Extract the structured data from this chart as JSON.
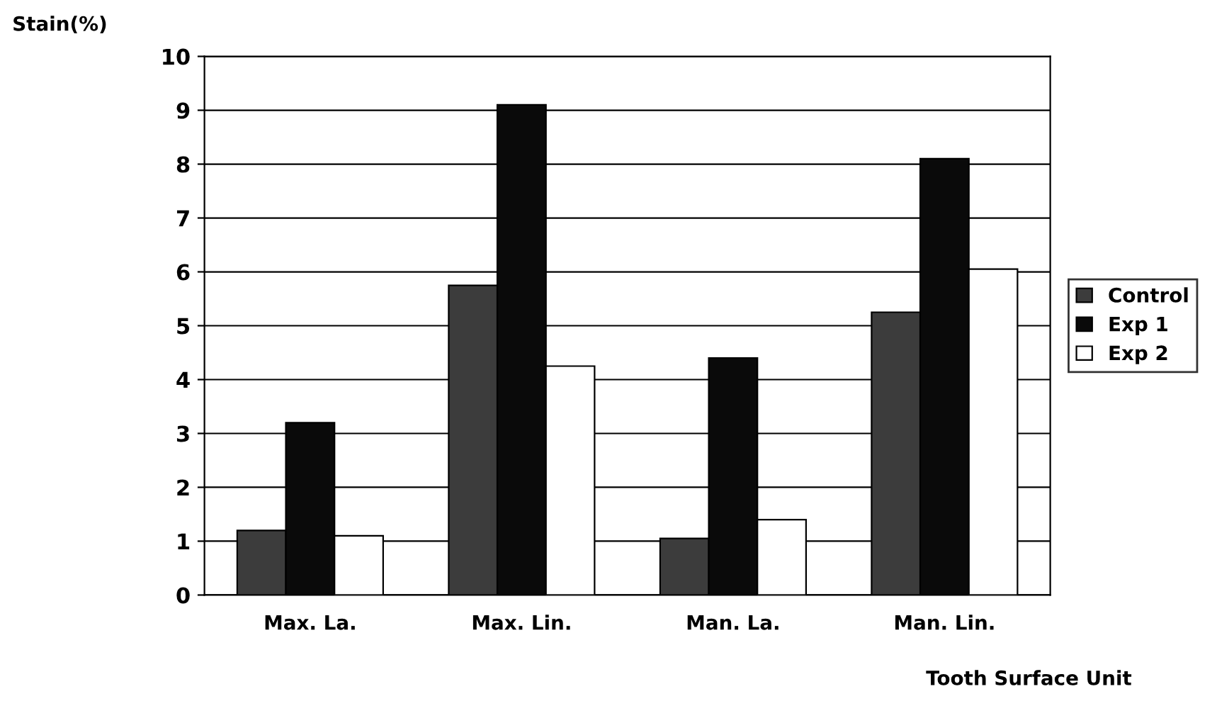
{
  "chart_data": {
    "type": "bar",
    "ylabel": "Stain(%)",
    "xlabel": "Tooth Surface Unit",
    "categories": [
      "Max. La.",
      "Max. Lin.",
      "Man. La.",
      "Man. Lin."
    ],
    "series": [
      {
        "name": "Control",
        "color": "#3c3c3c",
        "values": [
          1.2,
          5.75,
          1.05,
          5.25
        ]
      },
      {
        "name": "Exp 1",
        "color": "#0a0a0a",
        "values": [
          3.2,
          9.1,
          4.4,
          8.1
        ]
      },
      {
        "name": "Exp 2",
        "color": "#ffffff",
        "values": [
          1.1,
          4.25,
          1.4,
          6.05
        ]
      }
    ],
    "ylim": [
      0,
      10
    ],
    "yticks": [
      0,
      1,
      2,
      3,
      4,
      5,
      6,
      7,
      8,
      9,
      10
    ],
    "grid": "y",
    "legend": "right"
  }
}
